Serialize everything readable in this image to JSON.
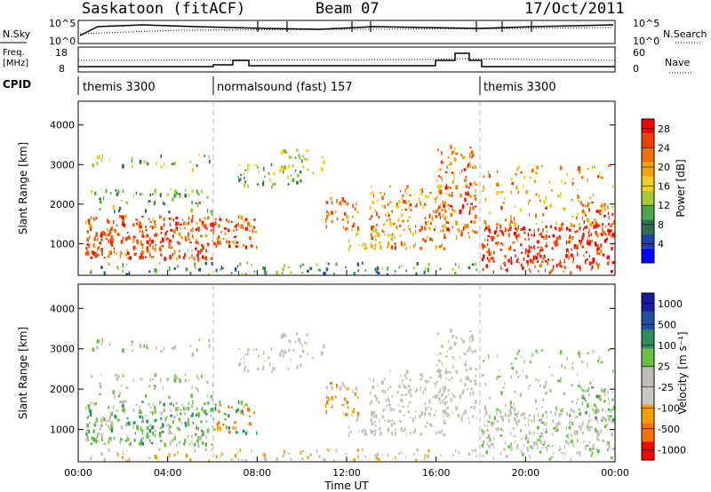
{
  "header": {
    "station": "Saskatoon (fitACF)",
    "beam": "Beam 07",
    "date": "17/Oct/2011"
  },
  "top_panels": {
    "nsky": {
      "label": "N.Sky",
      "tick_top": "10^5",
      "tick_bottom": "10^0",
      "right_label": "N.Search",
      "right_tick_top": "10^5",
      "right_tick_bottom": "10^0"
    },
    "freq": {
      "label_line1": "Freq.",
      "label_line2": "[MHz]",
      "tick_top": "18",
      "tick_bottom": "8",
      "right_label": "Nave",
      "right_tick_top": "60",
      "right_tick_bottom": "0"
    },
    "cpid": {
      "label": "CPID"
    }
  },
  "cpid_modes": [
    {
      "name": "themis 3300",
      "start": "00:00",
      "end": "06:00"
    },
    {
      "name": "normalsound (fast) 157",
      "start": "06:00",
      "end": "18:00"
    },
    {
      "name": "themis 3300",
      "start": "18:00",
      "end": "24:00"
    }
  ],
  "colors": {
    "power": [
      "#0000ff",
      "#1d43a6",
      "#2f6f4f",
      "#4aa84a",
      "#a6c936",
      "#f0d020",
      "#f5a300",
      "#f07000",
      "#f04000",
      "#ff0000"
    ],
    "velocity": [
      "#ff0000",
      "#ff7000",
      "#f5a000",
      "#c8c8c0",
      "#bdbdb5",
      "#6cc040",
      "#2f8f5a",
      "#1f4fa0",
      "#1a1aa0"
    ]
  },
  "chart_data": [
    {
      "type": "heatmap",
      "panel": "power",
      "ylabel": "Slant Range [km]",
      "yticks": [
        "1000",
        "2000",
        "3000",
        "4000"
      ],
      "ylim": [
        200,
        4600
      ],
      "colorbar": {
        "label": "Power [dB]",
        "ticks": [
          "4",
          "8",
          "12",
          "16",
          "20",
          "24",
          "28"
        ],
        "range": [
          0,
          30
        ]
      }
    },
    {
      "type": "heatmap",
      "panel": "velocity",
      "ylabel": "Slant Range [km]",
      "yticks": [
        "1000",
        "2000",
        "3000",
        "4000"
      ],
      "ylim": [
        200,
        4600
      ],
      "xlabel": "Time UT",
      "xticks": [
        "00:00",
        "04:00",
        "08:00",
        "12:00",
        "16:00",
        "20:00",
        "00:00"
      ],
      "colorbar": {
        "label": "Velocity [m s⁻¹]",
        "ticks": [
          "1000",
          "500",
          "100",
          "25",
          "-25",
          "-100",
          "-500",
          "-1000"
        ]
      }
    }
  ]
}
